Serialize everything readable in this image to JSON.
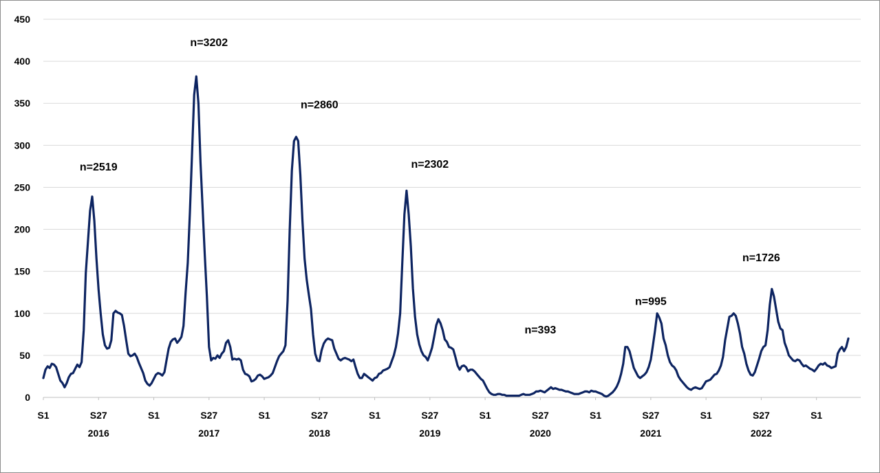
{
  "chart_data": {
    "type": "line",
    "title": "",
    "xlabel": "",
    "ylabel": "",
    "ylim": [
      0,
      450
    ],
    "yticks": [
      0,
      50,
      100,
      150,
      200,
      250,
      300,
      350,
      400,
      450
    ],
    "grid": "horizontal",
    "x_tick_labels": [
      {
        "week": "S1",
        "year": ""
      },
      {
        "week": "S27",
        "year": "2016"
      },
      {
        "week": "S1",
        "year": ""
      },
      {
        "week": "S27",
        "year": "2017"
      },
      {
        "week": "S1",
        "year": ""
      },
      {
        "week": "S27",
        "year": "2018"
      },
      {
        "week": "S1",
        "year": ""
      },
      {
        "week": "S27",
        "year": "2019"
      },
      {
        "week": "S1",
        "year": ""
      },
      {
        "week": "S27",
        "year": "2020"
      },
      {
        "week": "S1",
        "year": ""
      },
      {
        "week": "S27",
        "year": "2021"
      },
      {
        "week": "S1",
        "year": ""
      },
      {
        "week": "S27",
        "year": "2022"
      },
      {
        "week": "S1",
        "year": ""
      }
    ],
    "annotations": [
      {
        "text": "n=2519",
        "week_index": 26,
        "y": 275
      },
      {
        "text": "n=3202",
        "week_index": 78,
        "y": 423
      },
      {
        "text": "n=2860",
        "week_index": 130,
        "y": 349
      },
      {
        "text": "n=2302",
        "week_index": 182,
        "y": 278
      },
      {
        "text": "n=393",
        "week_index": 234,
        "y": 81
      },
      {
        "text": "n=995",
        "week_index": 286,
        "y": 115
      },
      {
        "text": "n=1726",
        "week_index": 338,
        "y": 167
      }
    ],
    "series": [
      {
        "color": "#0d2461",
        "values": [
          23,
          33,
          37,
          35,
          40,
          39,
          36,
          28,
          20,
          17,
          12,
          17,
          24,
          28,
          29,
          34,
          39,
          36,
          42,
          80,
          148,
          185,
          222,
          239,
          210,
          165,
          128,
          100,
          75,
          62,
          58,
          59,
          68,
          100,
          103,
          101,
          100,
          98,
          85,
          68,
          52,
          49,
          50,
          52,
          48,
          41,
          35,
          29,
          20,
          16,
          14,
          17,
          22,
          27,
          29,
          28,
          26,
          30,
          44,
          58,
          66,
          69,
          70,
          65,
          68,
          72,
          85,
          125,
          160,
          220,
          290,
          360,
          382,
          350,
          280,
          225,
          170,
          120,
          60,
          44,
          47,
          46,
          50,
          47,
          52,
          55,
          65,
          68,
          60,
          45,
          46,
          45,
          46,
          44,
          33,
          28,
          27,
          25,
          19,
          20,
          22,
          26,
          27,
          25,
          22,
          23,
          24,
          26,
          29,
          36,
          43,
          49,
          52,
          55,
          62,
          115,
          200,
          270,
          305,
          310,
          305,
          265,
          210,
          165,
          140,
          122,
          105,
          75,
          52,
          44,
          43,
          56,
          64,
          68,
          70,
          69,
          68,
          58,
          52,
          46,
          44,
          46,
          47,
          46,
          45,
          43,
          45,
          36,
          28,
          23,
          23,
          28,
          26,
          24,
          22,
          20,
          23,
          24,
          28,
          29,
          32,
          33,
          34,
          36,
          43,
          50,
          60,
          76,
          100,
          160,
          218,
          246,
          218,
          180,
          130,
          96,
          75,
          63,
          55,
          50,
          48,
          44,
          51,
          59,
          72,
          86,
          93,
          88,
          80,
          69,
          66,
          60,
          59,
          57,
          48,
          38,
          33,
          37,
          38,
          36,
          31,
          33,
          33,
          31,
          28,
          25,
          22,
          20,
          15,
          10,
          6,
          4,
          3,
          3,
          4,
          4,
          3,
          3,
          2,
          2,
          2,
          2,
          2,
          2,
          2,
          3,
          4,
          3,
          3,
          3,
          4,
          5,
          7,
          7,
          8,
          7,
          6,
          8,
          10,
          12,
          10,
          11,
          10,
          9,
          9,
          8,
          7,
          7,
          6,
          5,
          4,
          4,
          4,
          5,
          6,
          7,
          7,
          6,
          8,
          7,
          7,
          6,
          5,
          4,
          2,
          1,
          2,
          4,
          6,
          9,
          13,
          19,
          28,
          40,
          60,
          60,
          55,
          45,
          35,
          30,
          25,
          23,
          25,
          27,
          30,
          36,
          45,
          62,
          80,
          100,
          95,
          88,
          70,
          62,
          50,
          42,
          38,
          36,
          32,
          25,
          21,
          18,
          15,
          12,
          10,
          9,
          11,
          12,
          11,
          10,
          11,
          15,
          19,
          20,
          21,
          24,
          27,
          28,
          32,
          38,
          48,
          68,
          82,
          96,
          97,
          100,
          97,
          88,
          76,
          60,
          52,
          40,
          32,
          27,
          26,
          30,
          38,
          46,
          55,
          60,
          62,
          80,
          110,
          129,
          120,
          105,
          90,
          82,
          80,
          65,
          58,
          50,
          47,
          44,
          43,
          45,
          44,
          40,
          37,
          38,
          36,
          34,
          33,
          31,
          34,
          38,
          40,
          39,
          41,
          38,
          37,
          35,
          36,
          37,
          52,
          57,
          60,
          55,
          60,
          70
        ]
      }
    ]
  }
}
